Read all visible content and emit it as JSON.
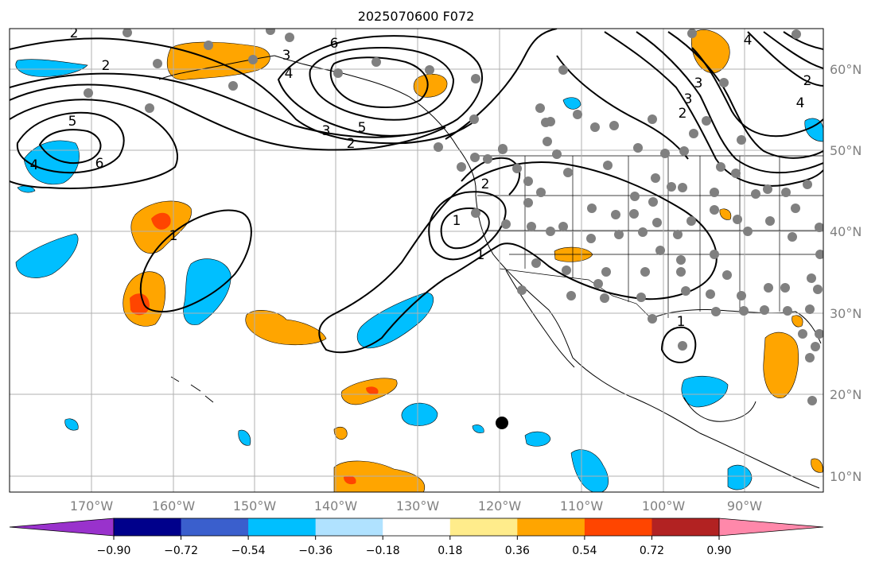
{
  "title": "2025070600 F072",
  "colors": {
    "colorbar": [
      "#9932cc",
      "#00008b",
      "#3a5fcd",
      "#00bfff",
      "#b0e2ff",
      "#ffffff",
      "#ffec8b",
      "#ffa500",
      "#ff4500",
      "#b22222",
      "#ff88aa"
    ],
    "grid": "#b0b0b0",
    "contour": "#000000",
    "station_marker": "#808080",
    "highlight_marker": "#000000"
  },
  "map": {
    "projection": "PlateCarree",
    "lon_range": [
      -180,
      -80
    ],
    "lat_range": [
      8,
      65
    ],
    "lon_ticks": [
      "170°W",
      "160°W",
      "150°W",
      "140°W",
      "130°W",
      "120°W",
      "110°W",
      "100°W",
      "90°W"
    ],
    "lat_ticks": [
      "60°N",
      "50°N",
      "40°N",
      "30°N",
      "20°N",
      "10°N"
    ],
    "colorbar_ticks": [
      "−0.90",
      "−0.72",
      "−0.54",
      "−0.36",
      "−0.18",
      "0.18",
      "0.36",
      "0.54",
      "0.72",
      "0.90"
    ],
    "colorbar_extend": "both",
    "contour_labels": [
      "2",
      "2",
      "3",
      "4",
      "6",
      "5",
      "4",
      "6",
      "3",
      "5",
      "2",
      "4",
      "3",
      "2",
      "4",
      "3",
      "2",
      "1",
      "1",
      "1",
      "2",
      "1"
    ]
  }
}
